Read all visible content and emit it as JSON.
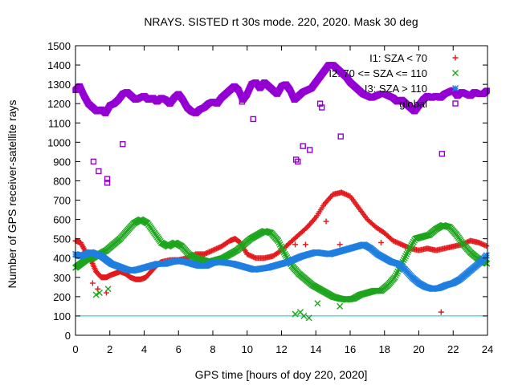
{
  "chart_data": {
    "type": "scatter",
    "title": "NRAYS. SISTED rt 30s mode. 220, 2020. Mask 30 deg",
    "xlabel": "GPS time [hours of doy 220, 2020]",
    "ylabel": "Number of GPS receiver-satellite rays",
    "xlim": [
      0,
      24
    ],
    "ylim": [
      0,
      1500
    ],
    "xticks": [
      "0",
      "2",
      "4",
      "6",
      "8",
      "10",
      "12",
      "14",
      "16",
      "18",
      "20",
      "22",
      "24"
    ],
    "yticks": [
      "0",
      "100",
      "200",
      "300",
      "400",
      "500",
      "600",
      "700",
      "800",
      "900",
      "1000",
      "1100",
      "1200",
      "1300",
      "1400",
      "1500"
    ],
    "legend_position": "top-right",
    "reference_line": {
      "y": 100,
      "color": "#00c8c8"
    },
    "series": [
      {
        "name": "I1: SZA < 70",
        "color": "#e31a1c",
        "marker": "plus",
        "points": [
          [
            0,
            490
          ],
          [
            0.3,
            480
          ],
          [
            0.6,
            430
          ],
          [
            0.9,
            390
          ],
          [
            1.2,
            330
          ],
          [
            1.5,
            300
          ],
          [
            1.8,
            300
          ],
          [
            2.0,
            310
          ],
          [
            2.3,
            320
          ],
          [
            2.6,
            330
          ],
          [
            2.9,
            320
          ],
          [
            3.2,
            300
          ],
          [
            3.5,
            290
          ],
          [
            3.8,
            290
          ],
          [
            4.1,
            300
          ],
          [
            4.4,
            330
          ],
          [
            4.7,
            360
          ],
          [
            5.0,
            380
          ],
          [
            5.5,
            390
          ],
          [
            6.0,
            390
          ],
          [
            6.5,
            400
          ],
          [
            7.0,
            420
          ],
          [
            7.5,
            420
          ],
          [
            8.0,
            440
          ],
          [
            8.5,
            460
          ],
          [
            9.0,
            490
          ],
          [
            9.3,
            500
          ],
          [
            9.6,
            480
          ],
          [
            10.0,
            420
          ],
          [
            10.5,
            400
          ],
          [
            11.0,
            400
          ],
          [
            11.5,
            410
          ],
          [
            12.0,
            440
          ],
          [
            12.5,
            480
          ],
          [
            13.0,
            520
          ],
          [
            13.5,
            560
          ],
          [
            14.0,
            610
          ],
          [
            14.5,
            680
          ],
          [
            15.0,
            730
          ],
          [
            15.5,
            740
          ],
          [
            16.0,
            720
          ],
          [
            16.5,
            660
          ],
          [
            17.0,
            600
          ],
          [
            17.5,
            560
          ],
          [
            18.0,
            530
          ],
          [
            18.5,
            490
          ],
          [
            19.0,
            470
          ],
          [
            19.5,
            450
          ],
          [
            20.0,
            440
          ],
          [
            20.5,
            450
          ],
          [
            21.0,
            440
          ],
          [
            21.5,
            450
          ],
          [
            22.0,
            460
          ],
          [
            22.5,
            470
          ],
          [
            23.0,
            490
          ],
          [
            23.5,
            480
          ],
          [
            24.0,
            460
          ],
          [
            1.0,
            270
          ],
          [
            1.3,
            240
          ],
          [
            1.8,
            220
          ],
          [
            12.8,
            470
          ],
          [
            13.4,
            470
          ],
          [
            15.4,
            470
          ],
          [
            17.8,
            480
          ],
          [
            21.3,
            120
          ],
          [
            14.6,
            590
          ]
        ]
      },
      {
        "name": "I2: 70 <= SZA <= 110",
        "color": "#1ca51c",
        "marker": "cross",
        "points": [
          [
            0,
            350
          ],
          [
            0.3,
            370
          ],
          [
            0.6,
            390
          ],
          [
            1.0,
            400
          ],
          [
            1.4,
            420
          ],
          [
            1.8,
            440
          ],
          [
            2.2,
            470
          ],
          [
            2.6,
            500
          ],
          [
            3.0,
            540
          ],
          [
            3.4,
            580
          ],
          [
            3.8,
            600
          ],
          [
            4.2,
            580
          ],
          [
            4.6,
            530
          ],
          [
            5.0,
            480
          ],
          [
            5.4,
            460
          ],
          [
            5.8,
            480
          ],
          [
            6.2,
            460
          ],
          [
            6.6,
            420
          ],
          [
            7.0,
            400
          ],
          [
            7.4,
            390
          ],
          [
            7.8,
            380
          ],
          [
            8.2,
            390
          ],
          [
            8.6,
            400
          ],
          [
            9.0,
            420
          ],
          [
            9.4,
            440
          ],
          [
            9.8,
            470
          ],
          [
            10.2,
            500
          ],
          [
            10.6,
            520
          ],
          [
            11.0,
            540
          ],
          [
            11.4,
            530
          ],
          [
            11.8,
            490
          ],
          [
            12.2,
            420
          ],
          [
            12.6,
            360
          ],
          [
            13.0,
            320
          ],
          [
            13.4,
            290
          ],
          [
            13.8,
            260
          ],
          [
            14.2,
            240
          ],
          [
            14.6,
            220
          ],
          [
            15.0,
            200
          ],
          [
            15.4,
            190
          ],
          [
            15.8,
            185
          ],
          [
            16.2,
            190
          ],
          [
            16.6,
            210
          ],
          [
            17.0,
            220
          ],
          [
            17.4,
            230
          ],
          [
            17.8,
            230
          ],
          [
            18.2,
            260
          ],
          [
            18.6,
            300
          ],
          [
            19.0,
            370
          ],
          [
            19.4,
            440
          ],
          [
            19.8,
            500
          ],
          [
            20.2,
            510
          ],
          [
            20.6,
            520
          ],
          [
            21.0,
            550
          ],
          [
            21.4,
            570
          ],
          [
            21.8,
            560
          ],
          [
            22.2,
            520
          ],
          [
            22.6,
            470
          ],
          [
            23.0,
            430
          ],
          [
            23.4,
            400
          ],
          [
            23.8,
            380
          ],
          [
            24.0,
            370
          ],
          [
            1.2,
            210
          ],
          [
            1.4,
            220
          ],
          [
            1.9,
            240
          ],
          [
            12.8,
            110
          ],
          [
            13.1,
            120
          ],
          [
            13.3,
            100
          ],
          [
            13.6,
            90
          ],
          [
            14.1,
            165
          ],
          [
            15.4,
            150
          ]
        ]
      },
      {
        "name": "I3: SZA > 110",
        "color": "#1e7fe0",
        "marker": "star",
        "points": [
          [
            0,
            420
          ],
          [
            0.3,
            410
          ],
          [
            0.6,
            420
          ],
          [
            0.9,
            430
          ],
          [
            1.2,
            420
          ],
          [
            1.5,
            410
          ],
          [
            1.8,
            390
          ],
          [
            2.1,
            370
          ],
          [
            2.4,
            360
          ],
          [
            2.7,
            350
          ],
          [
            3.0,
            340
          ],
          [
            3.3,
            335
          ],
          [
            3.6,
            340
          ],
          [
            4.0,
            350
          ],
          [
            4.4,
            360
          ],
          [
            4.8,
            370
          ],
          [
            5.2,
            370
          ],
          [
            5.6,
            380
          ],
          [
            6.0,
            385
          ],
          [
            6.4,
            380
          ],
          [
            6.8,
            370
          ],
          [
            7.2,
            360
          ],
          [
            7.6,
            360
          ],
          [
            8.0,
            375
          ],
          [
            8.4,
            380
          ],
          [
            8.8,
            375
          ],
          [
            9.2,
            370
          ],
          [
            9.6,
            360
          ],
          [
            10.0,
            350
          ],
          [
            10.4,
            340
          ],
          [
            10.8,
            345
          ],
          [
            11.2,
            350
          ],
          [
            11.6,
            360
          ],
          [
            12.0,
            370
          ],
          [
            12.4,
            380
          ],
          [
            12.8,
            395
          ],
          [
            13.2,
            410
          ],
          [
            13.6,
            420
          ],
          [
            14.0,
            430
          ],
          [
            14.4,
            425
          ],
          [
            14.8,
            420
          ],
          [
            15.2,
            430
          ],
          [
            15.6,
            440
          ],
          [
            16.0,
            450
          ],
          [
            16.4,
            460
          ],
          [
            16.8,
            470
          ],
          [
            17.2,
            450
          ],
          [
            17.6,
            420
          ],
          [
            18.0,
            400
          ],
          [
            18.4,
            380
          ],
          [
            18.8,
            370
          ],
          [
            19.2,
            340
          ],
          [
            19.6,
            300
          ],
          [
            20.0,
            270
          ],
          [
            20.4,
            250
          ],
          [
            20.8,
            240
          ],
          [
            21.2,
            245
          ],
          [
            21.6,
            260
          ],
          [
            22.0,
            270
          ],
          [
            22.4,
            290
          ],
          [
            22.8,
            320
          ],
          [
            23.2,
            350
          ],
          [
            23.6,
            380
          ],
          [
            24.0,
            420
          ]
        ]
      },
      {
        "name": "global",
        "color": "#9400d3",
        "marker": "open-square",
        "points": [
          [
            0,
            1270
          ],
          [
            0.25,
            1290
          ],
          [
            0.5,
            1240
          ],
          [
            0.75,
            1200
          ],
          [
            1.0,
            1180
          ],
          [
            1.25,
            1160
          ],
          [
            1.5,
            1170
          ],
          [
            1.75,
            1150
          ],
          [
            2.0,
            1190
          ],
          [
            2.25,
            1200
          ],
          [
            2.5,
            1220
          ],
          [
            2.75,
            1250
          ],
          [
            3.0,
            1260
          ],
          [
            3.25,
            1240
          ],
          [
            3.5,
            1220
          ],
          [
            3.75,
            1230
          ],
          [
            4.0,
            1240
          ],
          [
            4.25,
            1220
          ],
          [
            4.5,
            1230
          ],
          [
            4.75,
            1210
          ],
          [
            5.0,
            1230
          ],
          [
            5.25,
            1220
          ],
          [
            5.5,
            1200
          ],
          [
            5.75,
            1230
          ],
          [
            6.0,
            1250
          ],
          [
            6.25,
            1220
          ],
          [
            6.5,
            1180
          ],
          [
            6.75,
            1160
          ],
          [
            7.0,
            1150
          ],
          [
            7.25,
            1170
          ],
          [
            7.5,
            1180
          ],
          [
            7.75,
            1200
          ],
          [
            8.0,
            1210
          ],
          [
            8.25,
            1200
          ],
          [
            8.5,
            1230
          ],
          [
            8.75,
            1250
          ],
          [
            9.0,
            1270
          ],
          [
            9.25,
            1290
          ],
          [
            9.5,
            1270
          ],
          [
            9.75,
            1220
          ],
          [
            10.0,
            1250
          ],
          [
            10.25,
            1300
          ],
          [
            10.5,
            1310
          ],
          [
            10.75,
            1280
          ],
          [
            11.0,
            1310
          ],
          [
            11.25,
            1290
          ],
          [
            11.5,
            1270
          ],
          [
            11.75,
            1250
          ],
          [
            12.0,
            1290
          ],
          [
            12.25,
            1300
          ],
          [
            12.5,
            1270
          ],
          [
            12.75,
            1220
          ],
          [
            13.0,
            1240
          ],
          [
            13.25,
            1260
          ],
          [
            13.5,
            1270
          ],
          [
            13.75,
            1280
          ],
          [
            14.0,
            1310
          ],
          [
            14.25,
            1340
          ],
          [
            14.5,
            1370
          ],
          [
            14.75,
            1400
          ],
          [
            15.0,
            1400
          ],
          [
            15.25,
            1380
          ],
          [
            15.5,
            1360
          ],
          [
            15.75,
            1340
          ],
          [
            16.0,
            1310
          ],
          [
            16.25,
            1290
          ],
          [
            16.5,
            1270
          ],
          [
            16.75,
            1250
          ],
          [
            17.0,
            1240
          ],
          [
            17.25,
            1230
          ],
          [
            17.5,
            1240
          ],
          [
            17.75,
            1250
          ],
          [
            18.0,
            1250
          ],
          [
            18.25,
            1240
          ],
          [
            18.5,
            1230
          ],
          [
            18.75,
            1210
          ],
          [
            19.0,
            1220
          ],
          [
            19.25,
            1200
          ],
          [
            19.5,
            1180
          ],
          [
            19.75,
            1160
          ],
          [
            20.0,
            1190
          ],
          [
            20.25,
            1220
          ],
          [
            20.5,
            1240
          ],
          [
            20.75,
            1230
          ],
          [
            21.0,
            1240
          ],
          [
            21.25,
            1230
          ],
          [
            21.5,
            1250
          ],
          [
            21.75,
            1260
          ],
          [
            22.0,
            1270
          ],
          [
            22.25,
            1240
          ],
          [
            22.5,
            1260
          ],
          [
            22.75,
            1250
          ],
          [
            23.0,
            1240
          ],
          [
            23.25,
            1260
          ],
          [
            23.5,
            1250
          ],
          [
            23.75,
            1250
          ],
          [
            24.0,
            1270
          ],
          [
            1.05,
            900
          ],
          [
            1.35,
            850
          ],
          [
            1.85,
            810
          ],
          [
            1.85,
            790
          ],
          [
            2.75,
            990
          ],
          [
            10.35,
            1120
          ],
          [
            12.85,
            910
          ],
          [
            12.95,
            900
          ],
          [
            13.25,
            980
          ],
          [
            13.65,
            960
          ],
          [
            14.25,
            1200
          ],
          [
            14.35,
            1180
          ],
          [
            15.45,
            1030
          ],
          [
            21.35,
            940
          ],
          [
            5.5,
            1200
          ],
          [
            9.7,
            1210
          ]
        ]
      }
    ]
  }
}
